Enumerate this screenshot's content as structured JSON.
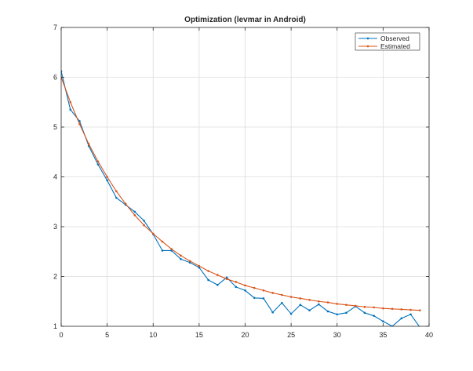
{
  "chart_data": {
    "type": "line",
    "title": "Optimization (levmar in Android)",
    "xlabel": "",
    "ylabel": "",
    "xlim": [
      0,
      40
    ],
    "ylim": [
      1,
      7
    ],
    "xticks": [
      "0",
      "5",
      "10",
      "15",
      "20",
      "25",
      "30",
      "35",
      "40"
    ],
    "yticks": [
      "1",
      "2",
      "3",
      "4",
      "5",
      "6",
      "7"
    ],
    "grid": true,
    "legend_position": "top-right",
    "series": [
      {
        "name": "Observed",
        "color": "#0072BD",
        "x": [
          0,
          1,
          2,
          3,
          4,
          5,
          6,
          7,
          8,
          9,
          10,
          11,
          12,
          13,
          14,
          15,
          16,
          17,
          18,
          19,
          20,
          21,
          22,
          23,
          24,
          25,
          26,
          27,
          28,
          29,
          30,
          31,
          32,
          33,
          34,
          35,
          36,
          37,
          38,
          39
        ],
        "y": [
          6.12,
          5.35,
          5.12,
          4.62,
          4.25,
          3.93,
          3.58,
          3.44,
          3.3,
          3.12,
          2.85,
          2.52,
          2.52,
          2.35,
          2.28,
          2.18,
          1.93,
          1.83,
          1.98,
          1.79,
          1.72,
          1.57,
          1.56,
          1.28,
          1.47,
          1.25,
          1.43,
          1.32,
          1.44,
          1.3,
          1.24,
          1.27,
          1.4,
          1.27,
          1.21,
          1.1,
          1.0,
          1.16,
          1.24,
          0.98
        ]
      },
      {
        "name": "Estimated",
        "color": "#D95319",
        "x": [
          0,
          1,
          2,
          3,
          4,
          5,
          6,
          7,
          8,
          9,
          10,
          11,
          12,
          13,
          14,
          15,
          16,
          17,
          18,
          19,
          20,
          21,
          22,
          23,
          24,
          25,
          26,
          27,
          28,
          29,
          30,
          31,
          32,
          33,
          34,
          35,
          36,
          37,
          38,
          39
        ],
        "y": [
          6.0,
          5.5,
          5.06,
          4.66,
          4.31,
          4.0,
          3.71,
          3.46,
          3.23,
          3.03,
          2.86,
          2.7,
          2.55,
          2.42,
          2.31,
          2.21,
          2.11,
          2.03,
          1.95,
          1.89,
          1.82,
          1.77,
          1.72,
          1.67,
          1.63,
          1.59,
          1.56,
          1.53,
          1.5,
          1.48,
          1.45,
          1.43,
          1.41,
          1.39,
          1.38,
          1.36,
          1.35,
          1.34,
          1.33,
          1.32
        ]
      }
    ]
  }
}
